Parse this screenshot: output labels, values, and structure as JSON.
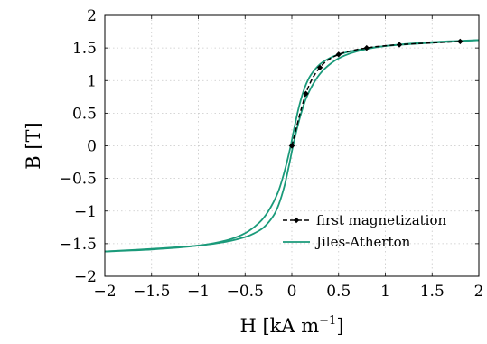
{
  "chart_data": {
    "type": "line",
    "xlabel": "H [kA m",
    "xlabel_exp": "−1",
    "xlabel_close": "]",
    "ylabel": "B [T]",
    "xlim": [
      -2,
      2
    ],
    "ylim": [
      -2,
      2
    ],
    "grid": true,
    "legend_position": "lower-right",
    "x_ticks": [
      -2,
      -1.5,
      -1,
      -0.5,
      0,
      0.5,
      1,
      1.5,
      2
    ],
    "x_tick_labels": [
      "−2",
      "−1.5",
      "−1",
      "−0.5",
      "0",
      "0.5",
      "1",
      "1.5",
      "2"
    ],
    "y_ticks": [
      -2,
      -1.5,
      -1,
      -0.5,
      0,
      0.5,
      1,
      1.5,
      2
    ],
    "y_tick_labels": [
      "−2",
      "−1.5",
      "−1",
      "−0.5",
      "0",
      "0.5",
      "1",
      "1.5",
      "2"
    ],
    "series": [
      {
        "name": "first magnetization",
        "style": "dashed-with-diamond-markers",
        "color": "#000000",
        "x": [
          0.0,
          0.15,
          0.3,
          0.5,
          0.8,
          1.15,
          1.8
        ],
        "y": [
          0.0,
          0.8,
          1.2,
          1.4,
          1.5,
          1.55,
          1.6
        ]
      },
      {
        "name": "Jiles-Atherton",
        "style": "solid",
        "color": "#1a9a7a",
        "branches": [
          {
            "x": [
              -2.0,
              -1.5,
              -1.0,
              -0.7,
              -0.5,
              -0.35,
              -0.25,
              -0.15,
              -0.08,
              -0.02,
              0.03,
              0.08,
              0.14,
              0.2,
              0.3,
              0.4,
              0.5,
              0.7,
              1.0,
              1.5,
              2.0
            ],
            "y": [
              -1.62,
              -1.59,
              -1.53,
              -1.45,
              -1.34,
              -1.18,
              -1.0,
              -0.72,
              -0.4,
              -0.05,
              0.3,
              0.62,
              0.9,
              1.08,
              1.25,
              1.34,
              1.4,
              1.47,
              1.53,
              1.58,
              1.62
            ]
          },
          {
            "x": [
              2.0,
              1.5,
              1.0,
              0.7,
              0.5,
              0.35,
              0.25,
              0.15,
              0.08,
              0.02,
              -0.03,
              -0.08,
              -0.14,
              -0.2,
              -0.3,
              -0.4,
              -0.5,
              -0.7,
              -1.0,
              -1.5,
              -2.0
            ],
            "y": [
              1.62,
              1.59,
              1.53,
              1.45,
              1.34,
              1.18,
              1.0,
              0.72,
              0.4,
              0.05,
              -0.3,
              -0.62,
              -0.9,
              -1.08,
              -1.25,
              -1.34,
              -1.4,
              -1.47,
              -1.53,
              -1.58,
              -1.62
            ]
          }
        ]
      }
    ]
  }
}
